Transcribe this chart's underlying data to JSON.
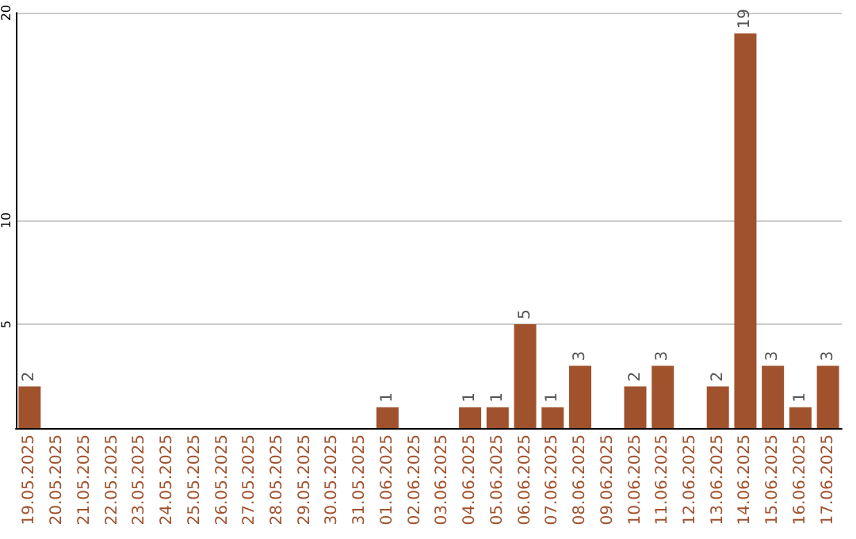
{
  "chart_data": {
    "type": "bar",
    "categories": [
      "19.05.2025",
      "20.05.2025",
      "21.05.2025",
      "22.05.2025",
      "23.05.2025",
      "24.05.2025",
      "25.05.2025",
      "26.05.2025",
      "27.05.2025",
      "28.05.2025",
      "29.05.2025",
      "30.05.2025",
      "31.05.2025",
      "01.06.2025",
      "02.06.2025",
      "03.06.2025",
      "04.06.2025",
      "05.06.2025",
      "06.06.2025",
      "07.06.2025",
      "08.06.2025",
      "09.06.2025",
      "10.06.2025",
      "11.06.2025",
      "12.06.2025",
      "13.06.2025",
      "14.06.2025",
      "15.06.2025",
      "16.06.2025",
      "17.06.2025"
    ],
    "values": [
      2,
      0,
      0,
      0,
      0,
      0,
      0,
      0,
      0,
      0,
      0,
      0,
      0,
      1,
      0,
      0,
      1,
      1,
      5,
      1,
      3,
      0,
      2,
      3,
      0,
      2,
      19,
      3,
      1,
      3
    ],
    "value_labels": [
      "2",
      null,
      null,
      null,
      null,
      null,
      null,
      null,
      null,
      null,
      null,
      null,
      null,
      "1",
      null,
      null,
      "1",
      "1",
      "5",
      "1",
      "3",
      null,
      "2",
      "3",
      null,
      "2",
      "19",
      "3",
      "1",
      "3"
    ],
    "color": "#a0522d",
    "ylim": [
      0,
      20
    ],
    "yticks": [
      5,
      10,
      20
    ],
    "grid": "y"
  }
}
